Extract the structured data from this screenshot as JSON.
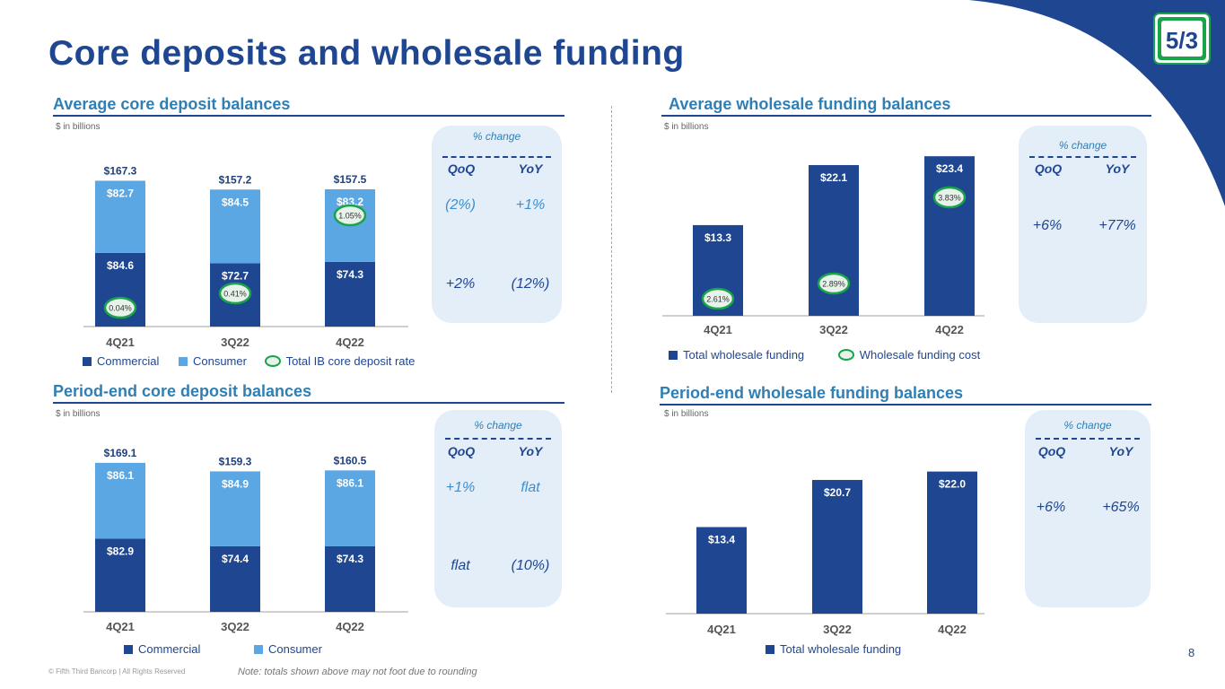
{
  "title": "Core deposits and wholesale funding",
  "unit_label": "$ in billions",
  "pct_change": {
    "header": "% change",
    "qoq": "QoQ",
    "yoy": "YoY"
  },
  "colors": {
    "commercial": "#1f4690",
    "consumer": "#5aa7e3",
    "wholesale": "#1f4690",
    "rate_circle": "#1aa44a",
    "accent": "#2f7fb5"
  },
  "legend": {
    "commercial": "Commercial",
    "consumer": "Consumer",
    "ib_rate": "Total IB core deposit rate",
    "total_wholesale": "Total wholesale funding",
    "wholesale_cost": "Wholesale funding cost"
  },
  "panels": {
    "avg_core": {
      "title": "Average core deposit balances",
      "qoq_consumer": "(2%)",
      "yoy_consumer": "+1%",
      "qoq_commercial": "+2%",
      "yoy_commercial": "(12%)"
    },
    "avg_wholesale": {
      "title": "Average wholesale funding balances",
      "qoq_total": "+6%",
      "yoy_total": "+77%"
    },
    "pe_core": {
      "title": "Period-end core deposit balances",
      "qoq_consumer": "+1%",
      "yoy_consumer": "flat",
      "qoq_commercial": "flat",
      "yoy_commercial": "(10%)"
    },
    "pe_wholesale": {
      "title": "Period-end wholesale funding balances",
      "qoq_total": "+6%",
      "yoy_total": "+65%"
    }
  },
  "chart_data": [
    {
      "id": "avg_core",
      "type": "bar",
      "stacked": true,
      "title": "Average core deposit balances",
      "ylabel": "$ in billions",
      "categories": [
        "4Q21",
        "3Q22",
        "4Q22"
      ],
      "series": [
        {
          "name": "Commercial",
          "values": [
            84.6,
            72.7,
            74.3
          ],
          "labels": [
            "$84.6",
            "$72.7",
            "$74.3"
          ]
        },
        {
          "name": "Consumer",
          "values": [
            82.7,
            84.5,
            83.2
          ],
          "labels": [
            "$82.7",
            "$84.5",
            "$83.2"
          ]
        }
      ],
      "totals": [
        "$167.3",
        "$157.2",
        "$157.5"
      ],
      "rate_series": {
        "name": "Total IB core deposit rate",
        "values": [
          0.04,
          0.41,
          1.05
        ],
        "labels": [
          "0.04%",
          "0.41%",
          "1.05%"
        ]
      },
      "ylim": [
        0,
        175
      ]
    },
    {
      "id": "avg_wholesale",
      "type": "bar",
      "title": "Average wholesale funding balances",
      "ylabel": "$ in billions",
      "categories": [
        "4Q21",
        "3Q22",
        "4Q22"
      ],
      "series": [
        {
          "name": "Total wholesale funding",
          "values": [
            13.3,
            22.1,
            23.4
          ],
          "labels": [
            "$13.3",
            "$22.1",
            "$23.4"
          ]
        }
      ],
      "rate_series": {
        "name": "Wholesale funding cost",
        "values": [
          2.61,
          2.89,
          3.83
        ],
        "labels": [
          "2.61%",
          "2.89%",
          "3.83%"
        ]
      },
      "ylim": [
        0,
        25
      ]
    },
    {
      "id": "pe_core",
      "type": "bar",
      "stacked": true,
      "title": "Period-end core deposit balances",
      "ylabel": "$ in billions",
      "categories": [
        "4Q21",
        "3Q22",
        "4Q22"
      ],
      "series": [
        {
          "name": "Commercial",
          "values": [
            82.9,
            74.4,
            74.3
          ],
          "labels": [
            "$82.9",
            "$74.4",
            "$74.3"
          ]
        },
        {
          "name": "Consumer",
          "values": [
            86.1,
            84.9,
            86.1
          ],
          "labels": [
            "$86.1",
            "$84.9",
            "$86.1"
          ]
        }
      ],
      "totals": [
        "$169.1",
        "$159.3",
        "$160.5"
      ],
      "ylim": [
        0,
        175
      ]
    },
    {
      "id": "pe_wholesale",
      "type": "bar",
      "title": "Period-end wholesale funding balances",
      "ylabel": "$ in billions",
      "categories": [
        "4Q21",
        "3Q22",
        "4Q22"
      ],
      "series": [
        {
          "name": "Total wholesale funding",
          "values": [
            13.4,
            20.7,
            22.0
          ],
          "labels": [
            "$13.4",
            "$20.7",
            "$22.0"
          ]
        }
      ],
      "ylim": [
        0,
        25
      ]
    }
  ],
  "footer": "© Fifth Third Bancorp | All Rights Reserved",
  "note": "Note: totals shown above may not foot due to rounding",
  "page_number": "8",
  "logo_text": "5/3"
}
